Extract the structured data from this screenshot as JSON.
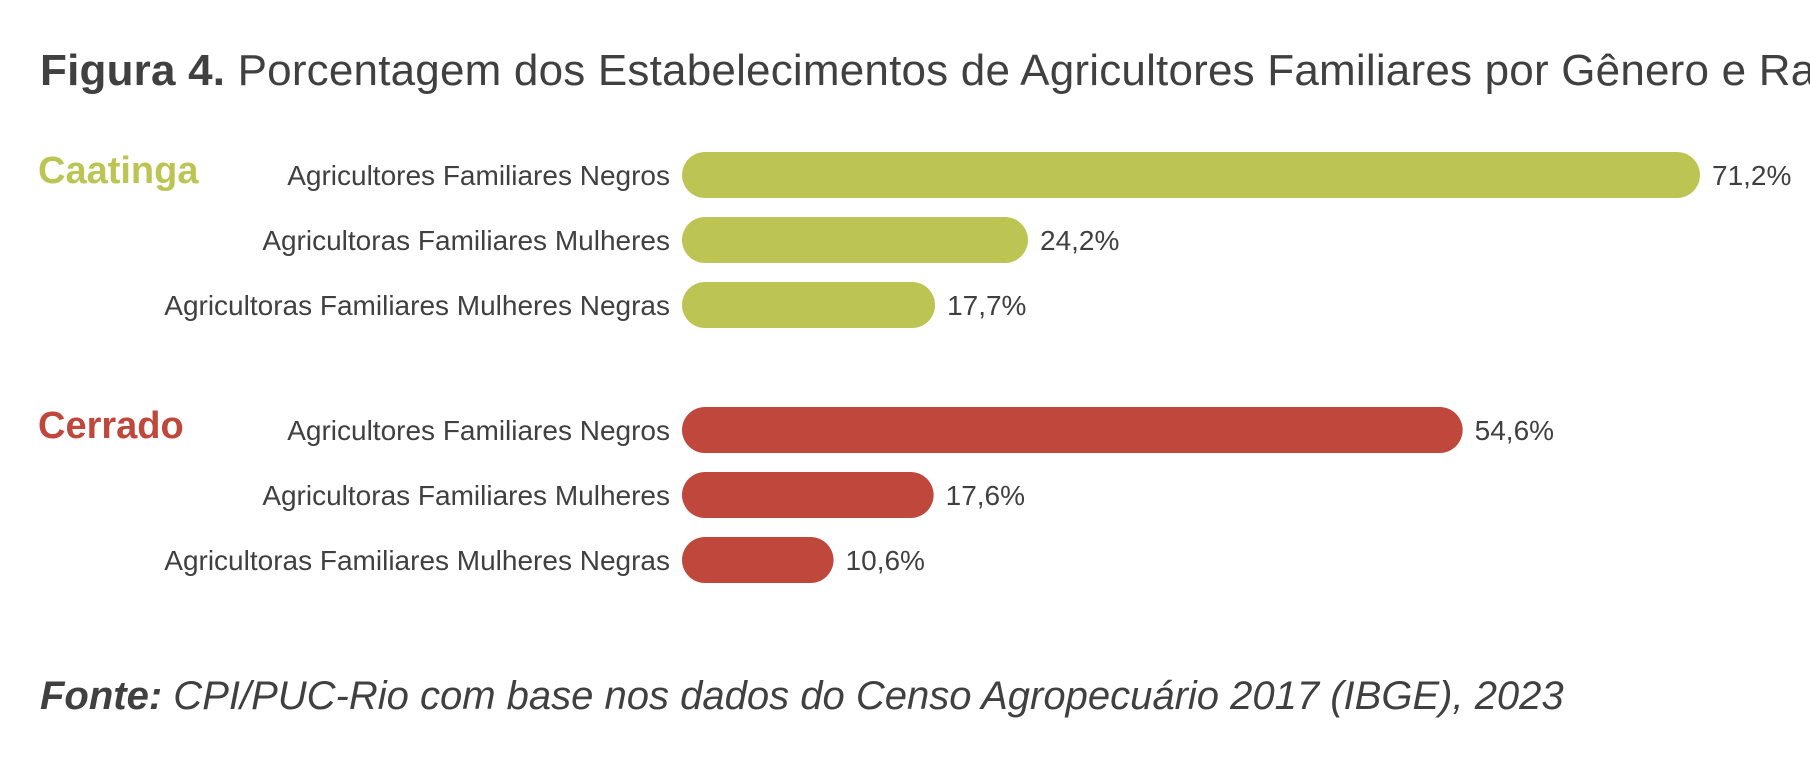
{
  "title": {
    "prefix": "Figura 4.",
    "text": " Porcentagem dos Estabelecimentos de Agricultores Familiares por Gênero e Raça"
  },
  "source": {
    "prefix": "Fonte:",
    "text": " CPI/PUC-Rio com base nos dados do Censo Agropecuário 2017 (IBGE), 2023"
  },
  "chart_data": {
    "type": "bar",
    "orientation": "horizontal",
    "xlim": [
      0,
      71.2
    ],
    "grid": false,
    "legend": "none",
    "groups": [
      {
        "name": "Caatinga",
        "color": "#bcc553",
        "categories": [
          "Agricultores Familiares Negros",
          "Agricultoras Familiares Mulheres",
          "Agricultoras Familiares Mulheres Negras"
        ],
        "values": [
          71.2,
          24.2,
          17.7
        ],
        "labels": [
          "71,2%",
          "24,2%",
          "17,7%"
        ]
      },
      {
        "name": "Cerrado",
        "color": "#c0473b",
        "categories": [
          "Agricultores Familiares Negros",
          "Agricultoras Familiares Mulheres",
          "Agricultoras Familiares Mulheres Negras"
        ],
        "values": [
          54.6,
          17.6,
          10.6
        ],
        "labels": [
          "54,6%",
          "17,6%",
          "10,6%"
        ]
      }
    ]
  }
}
